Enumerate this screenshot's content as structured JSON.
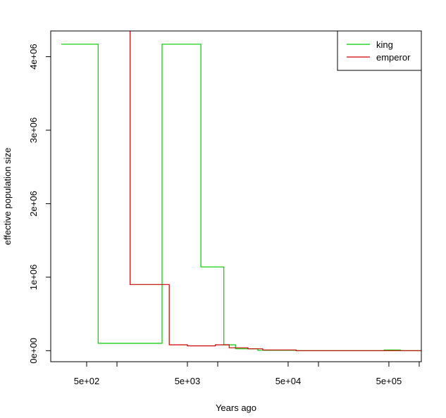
{
  "chart_data": {
    "type": "line",
    "step": true,
    "title": "",
    "xlabel": "Years ago",
    "ylabel": "effective population size",
    "x_scale": "log",
    "xlim": [
      220,
      1050000
    ],
    "ylim": [
      -150000,
      4350000
    ],
    "x_ticks": [
      {
        "value": 500,
        "label": "5e+02"
      },
      {
        "value": 1000,
        "label": ""
      },
      {
        "value": 5000,
        "label": "5e+03"
      },
      {
        "value": 10000,
        "label": ""
      },
      {
        "value": 50000,
        "label": "5e+04"
      },
      {
        "value": 100000,
        "label": ""
      },
      {
        "value": 500000,
        "label": "5e+05"
      },
      {
        "value": 1000000,
        "label": ""
      }
    ],
    "y_ticks": [
      {
        "value": 0,
        "label": "0e+00"
      },
      {
        "value": 1000000,
        "label": "1e+06"
      },
      {
        "value": 2000000,
        "label": "2e+06"
      },
      {
        "value": 3000000,
        "label": "3e+06"
      },
      {
        "value": 4000000,
        "label": "4e+06"
      }
    ],
    "legend": {
      "position": "top-right"
    },
    "series": [
      {
        "name": "king",
        "color": "#00cc00",
        "points": [
          [
            280,
            4170000
          ],
          [
            650,
            4170000
          ],
          [
            650,
            100000
          ],
          [
            2800,
            100000
          ],
          [
            2800,
            4170000
          ],
          [
            6800,
            4170000
          ],
          [
            6800,
            1140000
          ],
          [
            11500,
            1140000
          ],
          [
            11500,
            80000
          ],
          [
            15000,
            80000
          ],
          [
            15000,
            25000
          ],
          [
            25000,
            25000
          ],
          [
            25000,
            5000
          ],
          [
            60000,
            5000
          ],
          [
            60000,
            0
          ],
          [
            450000,
            0
          ],
          [
            450000,
            10000
          ],
          [
            650000,
            10000
          ],
          [
            650000,
            0
          ],
          [
            1050000,
            0
          ]
        ]
      },
      {
        "name": "emperor",
        "color": "#cc0000",
        "points": [
          [
            1350,
            4400000
          ],
          [
            1350,
            900000
          ],
          [
            3300,
            900000
          ],
          [
            3300,
            80000
          ],
          [
            5000,
            80000
          ],
          [
            5000,
            65000
          ],
          [
            9500,
            65000
          ],
          [
            9500,
            80000
          ],
          [
            13000,
            80000
          ],
          [
            13000,
            40000
          ],
          [
            20000,
            40000
          ],
          [
            20000,
            25000
          ],
          [
            28000,
            25000
          ],
          [
            28000,
            10000
          ],
          [
            60000,
            10000
          ],
          [
            60000,
            0
          ],
          [
            1050000,
            0
          ]
        ]
      }
    ]
  }
}
